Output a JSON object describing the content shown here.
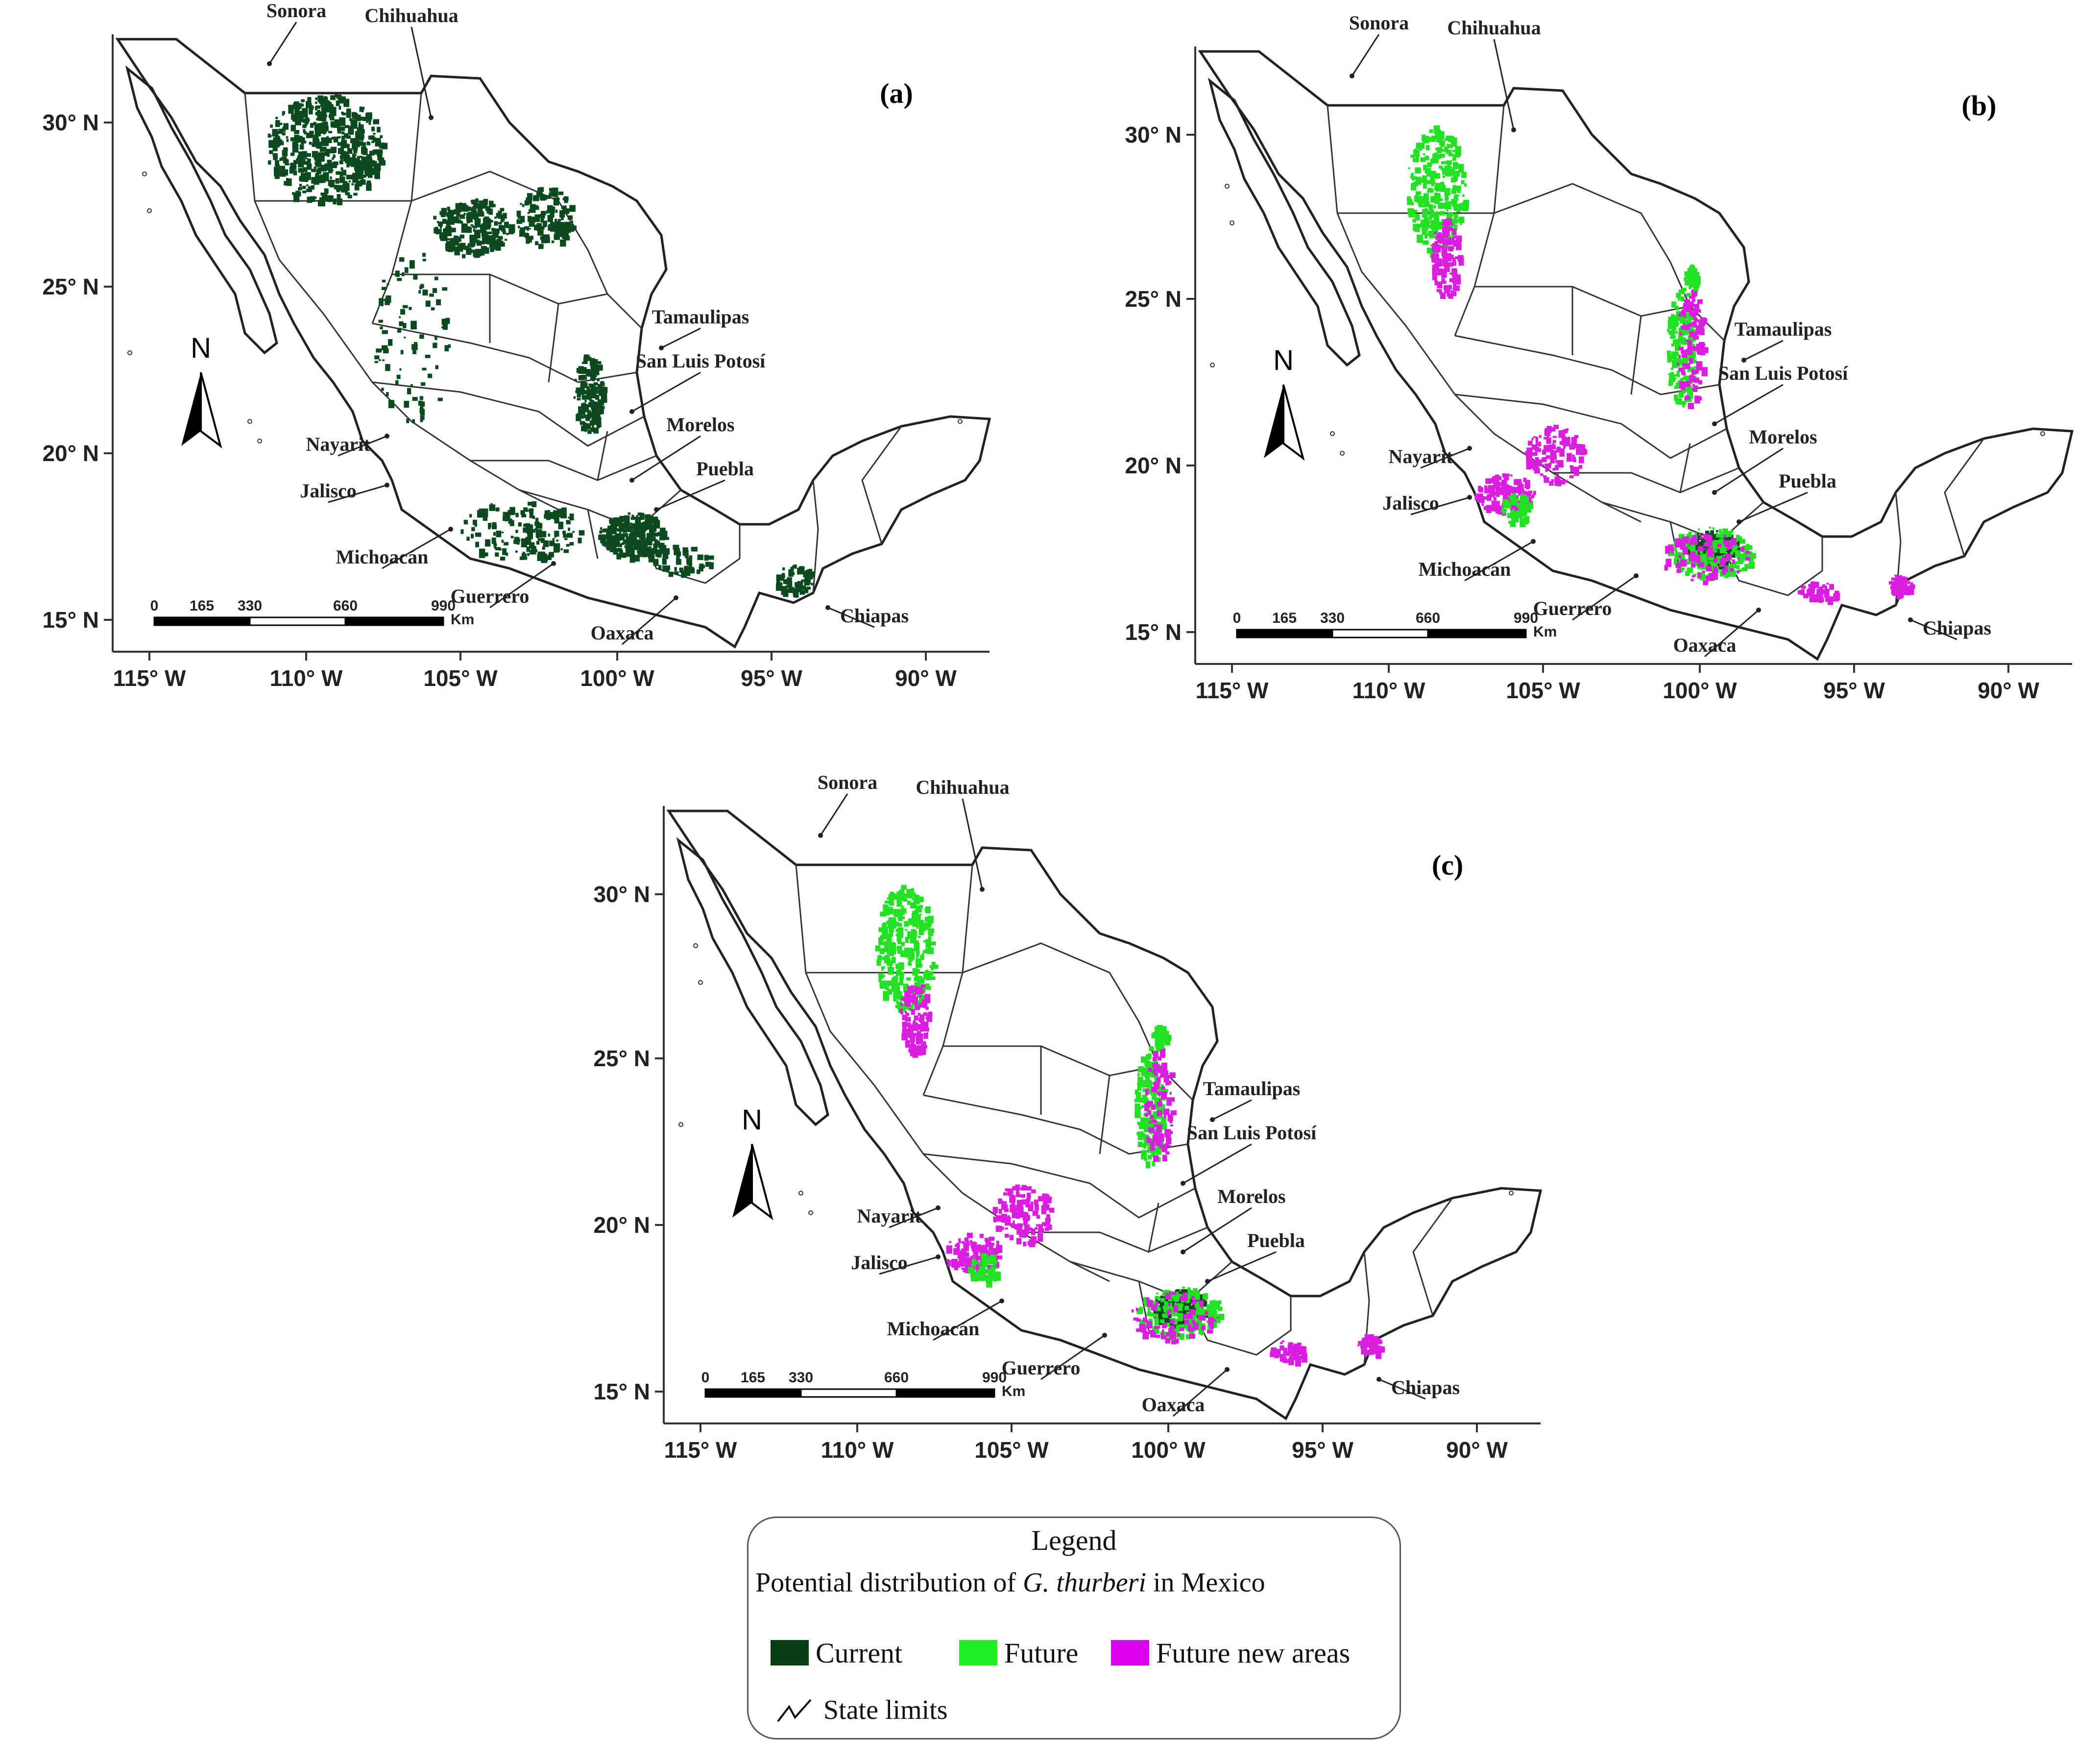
{
  "colors": {
    "current": "#0a4a1e",
    "future": "#22e022",
    "future_new": "#d91ee0",
    "state_lines": "#222222"
  },
  "axes": {
    "yticks": [
      "30° N",
      "25° N",
      "20° N",
      "15° N"
    ],
    "xticks": [
      "115° W",
      "110° W",
      "105° W",
      "100° W",
      "95° W",
      "90° W"
    ]
  },
  "scale_bar": {
    "ticks": [
      "0",
      "165",
      "330",
      "660",
      "990"
    ],
    "unit": "Km"
  },
  "north_label": "N",
  "panels": [
    {
      "label": "(a)",
      "states": [
        "Sonora",
        "Chihuahua",
        "Tamaulipas",
        "San Luis Potosí",
        "Morelos",
        "Puebla",
        "Nayarit",
        "Jalisco",
        "Michoacán",
        "Guerrero",
        "Oaxaca",
        "Chiapas"
      ]
    },
    {
      "label": "(b)",
      "states": [
        "Sonora",
        "Chihuahua",
        "Tamaulipas",
        "San Luis Potosí",
        "Morelos",
        "Puebla",
        "Nayarit",
        "Jalisco",
        "Michoacán",
        "Guerrero",
        "Oaxaca",
        "Chiapas"
      ]
    },
    {
      "label": "(c)",
      "states": [
        "Sonora",
        "Chihuahua",
        "Tamaulipas",
        "San Luis Potosí",
        "Morelos",
        "Puebla",
        "Nayarit",
        "Jalisco",
        "Michoacán",
        "Guerrero",
        "Oaxaca",
        "Chiapas"
      ]
    }
  ],
  "legend": {
    "title": "Legend",
    "subtitle_pre": "Potential distribution of ",
    "subtitle_species": "G. thurberi",
    "subtitle_post": " in Mexico",
    "items": [
      "Current",
      "Future",
      "Future new areas"
    ],
    "state_limits": "State limits"
  }
}
